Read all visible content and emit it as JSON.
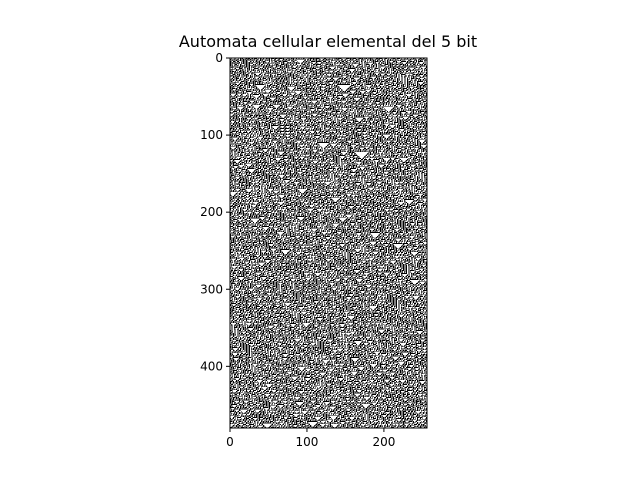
{
  "chart_data": {
    "type": "heatmap",
    "title": "Automata cellular elemental del 5 bit",
    "xlabel": "",
    "ylabel": "",
    "x_ticks": [
      0,
      100,
      200
    ],
    "y_ticks": [
      0,
      100,
      200,
      300,
      400
    ],
    "xlim": [
      0,
      256
    ],
    "ylim": [
      480,
      0
    ],
    "width_cells": 256,
    "height_cells": 480,
    "rule": 30,
    "colormap": {
      "on": "#000000",
      "off": "#ffffff"
    },
    "grid": false,
    "legend": "none"
  }
}
